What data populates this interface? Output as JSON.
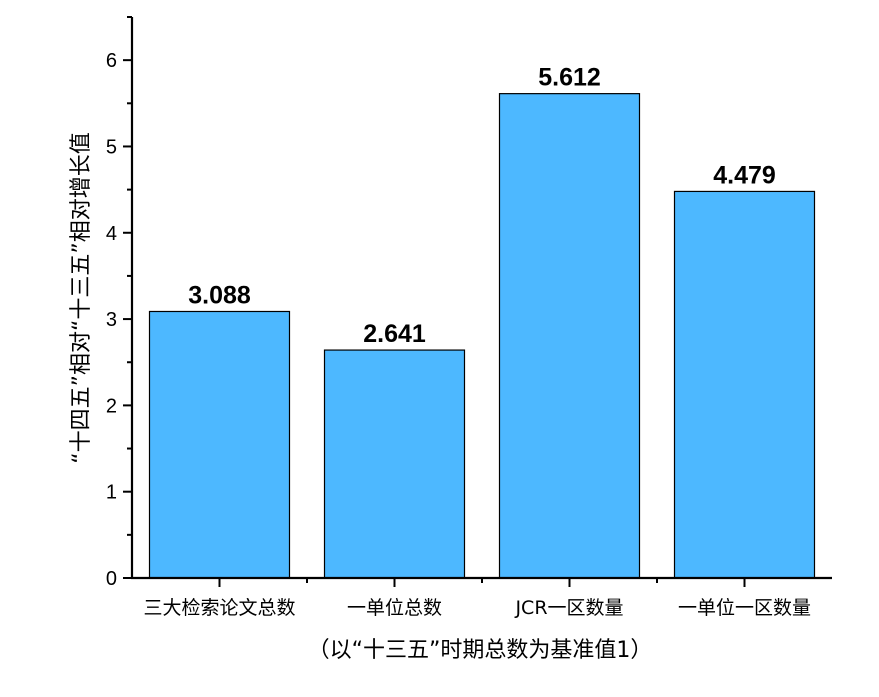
{
  "chart_data": {
    "type": "bar",
    "title": "",
    "categories": [
      "三大检索论文总数",
      "一单位总数",
      "JCR一区数量",
      "一单位一区数量"
    ],
    "values": [
      3.088,
      2.641,
      5.612,
      4.479
    ],
    "data_labels": [
      "3.088",
      "2.641",
      "5.612",
      "4.479"
    ],
    "xlabel": "（以“十三五”时期总数为基准值1）",
    "ylabel": "“十四五”相对“十三五”相对增长值",
    "ylim": [
      0,
      6.5
    ],
    "yticks": [
      0,
      1,
      2,
      3,
      4,
      5,
      6
    ],
    "grid": false,
    "legend": "none",
    "colors": {
      "bar": "#4DB8FF",
      "bar_edge": "#000000"
    }
  }
}
